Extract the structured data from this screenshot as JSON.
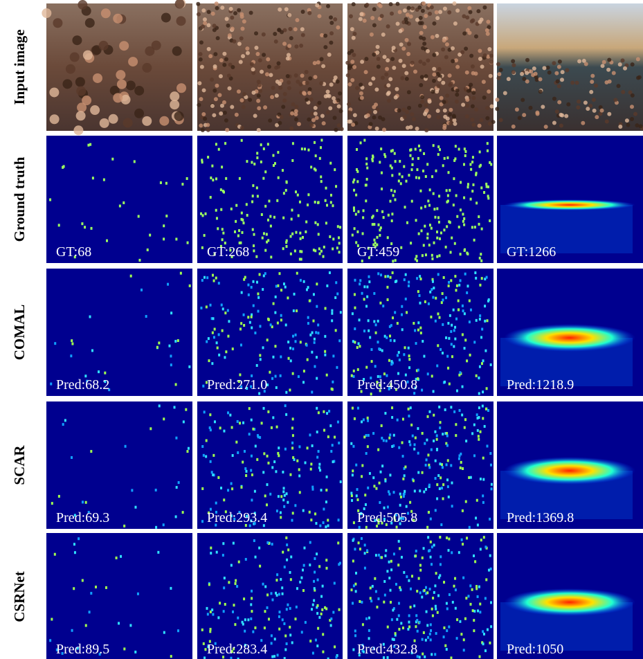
{
  "rows": [
    {
      "label": "Input image"
    },
    {
      "label": "Ground truth",
      "cells": [
        "GT:68",
        "GT:268",
        "GT:459",
        "GT:1266"
      ]
    },
    {
      "label": "COMAL",
      "cells": [
        "Pred:68.2",
        "Pred:271.0",
        "Pred:450.8",
        "Pred:1218.9"
      ]
    },
    {
      "label": "SCAR",
      "cells": [
        "Pred:69.3",
        "Pred:293.4",
        "Pred:505.8",
        "Pred:1369.8"
      ]
    },
    {
      "label": "CSRNet",
      "cells": [
        "Pred:89.5",
        "Pred:283.4",
        "Pred:432.8",
        "Pred:1050"
      ]
    }
  ]
}
